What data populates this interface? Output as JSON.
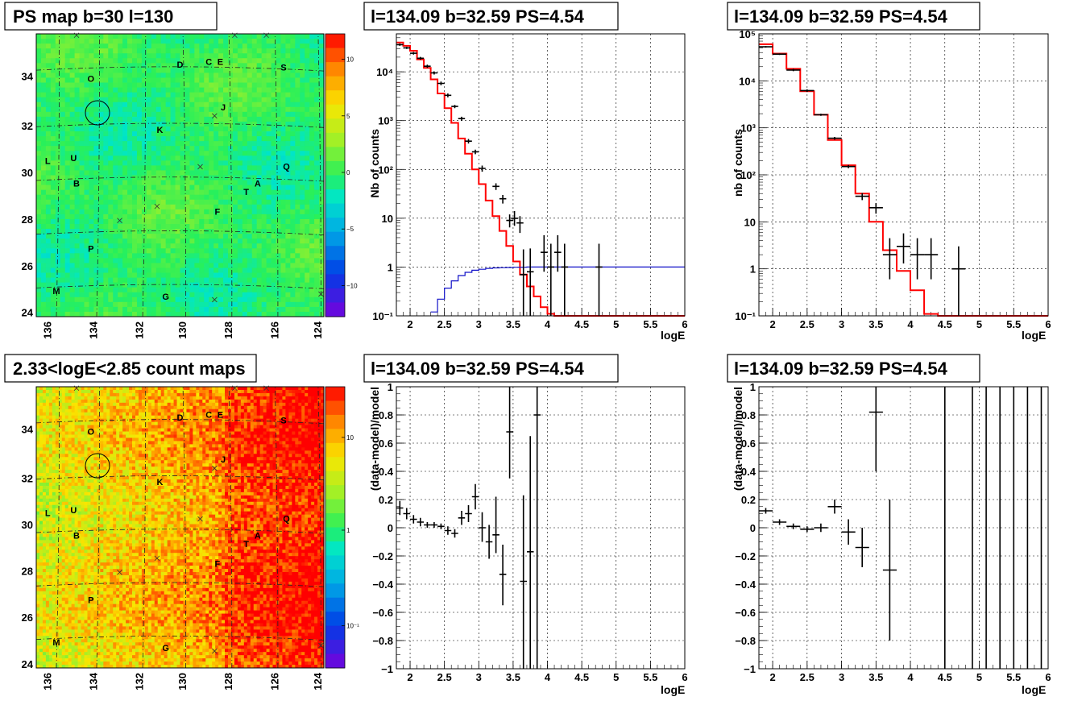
{
  "colors": {
    "frame": "#000000",
    "grid": "#9a9a9a",
    "model": "#ff0000",
    "blue": "#1010c8",
    "data": "#000000"
  },
  "maps": [
    {
      "id": "psmap",
      "title": "PS map b=30 l=130",
      "ticks_x": [
        "136",
        "134",
        "132",
        "130",
        "128",
        "126",
        "124"
      ],
      "ticks_y": [
        "24",
        "26",
        "28",
        "30",
        "32",
        "34"
      ],
      "palette_ticks": [
        "10",
        "5",
        "0",
        "−5",
        "−10"
      ],
      "palette_kind": "linear",
      "colormap": "green-dominant",
      "sources": [
        "O",
        "D",
        "C",
        "E",
        "S",
        "J",
        "K",
        "L",
        "U",
        "Q",
        "B",
        "A",
        "T",
        "F",
        "P",
        "M",
        "G"
      ]
    },
    {
      "id": "countmap",
      "title": "2.33<logE<2.85 count maps",
      "ticks_x": [
        "136",
        "134",
        "132",
        "130",
        "128",
        "126",
        "124"
      ],
      "ticks_y": [
        "24",
        "26",
        "28",
        "30",
        "32",
        "34"
      ],
      "palette_ticks": [
        "10",
        "1",
        "10⁻¹"
      ],
      "palette_kind": "log",
      "colormap": "orange-dominant",
      "sources": [
        "O",
        "D",
        "C",
        "E",
        "S",
        "J",
        "K",
        "L",
        "U",
        "Q",
        "B",
        "A",
        "T",
        "F",
        "P",
        "M",
        "G"
      ]
    }
  ],
  "chart_data": [
    {
      "id": "spec1",
      "type": "line",
      "title": "l=134.09 b=32.59 PS=4.54",
      "xlabel": "logE",
      "ylabel": "Nb of counts",
      "xlim": [
        1.8,
        6
      ],
      "ylim": [
        0.1,
        60000
      ],
      "yscale": "log",
      "xticks": [
        "2",
        "2.5",
        "3",
        "3.5",
        "4",
        "4.5",
        "5",
        "5.5",
        "6"
      ],
      "yticks": [
        "10⁻¹",
        "1",
        "10",
        "10²",
        "10³",
        "10⁴"
      ],
      "grid": true,
      "series": [
        {
          "kind": "step",
          "color": "red",
          "x": [
            1.8,
            1.9,
            2.0,
            2.1,
            2.2,
            2.3,
            2.4,
            2.5,
            2.6,
            2.7,
            2.8,
            2.9,
            3.0,
            3.1,
            3.2,
            3.3,
            3.4,
            3.5,
            3.6,
            3.7,
            3.8,
            3.9,
            4.0,
            4.1,
            4.2,
            4.3,
            4.4,
            4.5,
            6.0
          ],
          "values": [
            40000,
            34000,
            27000,
            18000,
            12000,
            7000,
            3600,
            1800,
            900,
            430,
            210,
            100,
            50,
            23,
            11,
            5.5,
            2.7,
            1.3,
            0.7,
            0.4,
            0.25,
            0.15,
            0.11,
            0.1,
            0.1,
            0.1,
            0.1,
            0.1,
            0.1
          ]
        },
        {
          "kind": "step",
          "color": "blue",
          "x": [
            2.3,
            2.4,
            2.5,
            2.6,
            2.7,
            2.8,
            2.9,
            3.0,
            3.1,
            3.2,
            3.3,
            3.4,
            3.5,
            3.6,
            3.7,
            3.8,
            3.9,
            4.0,
            4.1,
            4.2,
            6.0
          ],
          "values": [
            0.12,
            0.22,
            0.37,
            0.52,
            0.67,
            0.78,
            0.86,
            0.9,
            0.94,
            0.96,
            0.97,
            0.98,
            0.99,
            0.99,
            1.0,
            1.0,
            1.0,
            1.0,
            1.0,
            1.0,
            1.0
          ]
        },
        {
          "kind": "points",
          "color": "black",
          "points": [
            [
              1.85,
              36000,
              1.8,
              1.9,
              34000,
              38000
            ],
            [
              1.95,
              31000,
              1.9,
              2.0,
              29500,
              32500
            ],
            [
              2.05,
              24000,
              2.0,
              2.1,
              22500,
              25500
            ],
            [
              2.15,
              19000,
              2.1,
              2.2,
              17800,
              20200
            ],
            [
              2.25,
              13000,
              2.2,
              2.3,
              12000,
              14000
            ],
            [
              2.35,
              9500,
              2.3,
              2.4,
              8800,
              10200
            ],
            [
              2.45,
              5800,
              2.4,
              2.5,
              5300,
              6300
            ],
            [
              2.55,
              3300,
              2.5,
              2.6,
              3000,
              3600
            ],
            [
              2.65,
              1950,
              2.6,
              2.7,
              1800,
              2100
            ],
            [
              2.75,
              1100,
              2.7,
              2.8,
              1000,
              1200
            ],
            [
              2.85,
              380,
              2.8,
              2.9,
              340,
              420
            ],
            [
              2.95,
              230,
              2.9,
              3.0,
              205,
              255
            ],
            [
              3.05,
              105,
              3.0,
              3.1,
              90,
              120
            ],
            [
              3.25,
              45,
              3.2,
              3.3,
              38,
              52
            ],
            [
              3.35,
              25,
              3.3,
              3.4,
              20,
              30
            ],
            [
              3.45,
              9,
              3.4,
              3.5,
              6.5,
              12
            ],
            [
              3.52,
              10,
              3.47,
              3.57,
              7,
              14
            ],
            [
              3.6,
              8,
              3.55,
              3.65,
              5,
              11
            ],
            [
              3.65,
              0.7,
              3.6,
              3.7,
              0.1,
              2.3
            ],
            [
              3.75,
              0.8,
              3.7,
              3.8,
              0.1,
              2.4
            ],
            [
              3.95,
              2,
              3.9,
              4.0,
              0.8,
              4.5
            ],
            [
              4.05,
              1,
              4.0,
              4.1,
              0.1,
              3.0
            ],
            [
              4.15,
              2,
              4.1,
              4.2,
              0.8,
              4.5
            ],
            [
              4.25,
              1,
              4.2,
              4.3,
              0.1,
              3.0
            ],
            [
              4.75,
              1,
              4.7,
              4.8,
              0.1,
              3.0
            ]
          ]
        }
      ]
    },
    {
      "id": "spec2",
      "type": "line",
      "title": "l=134.09 b=32.59 PS=4.54",
      "xlabel": "logE",
      "ylabel": "nb of counts",
      "xlim": [
        1.8,
        6
      ],
      "ylim": [
        0.1,
        100000
      ],
      "yscale": "log",
      "xticks": [
        "2",
        "2.5",
        "3",
        "3.5",
        "4",
        "4.5",
        "5",
        "5.5",
        "6"
      ],
      "yticks": [
        "10⁻¹",
        "1",
        "10",
        "10²",
        "10³",
        "10⁴",
        "10⁵"
      ],
      "grid": true,
      "series": [
        {
          "kind": "step",
          "color": "red",
          "x": [
            1.8,
            2.0,
            2.2,
            2.4,
            2.6,
            2.8,
            3.0,
            3.2,
            3.4,
            3.6,
            3.8,
            4.0,
            4.2,
            4.4,
            6.0
          ],
          "values": [
            60000,
            38000,
            18000,
            6000,
            1900,
            550,
            160,
            40,
            10,
            2.5,
            0.9,
            0.35,
            0.11,
            0.1,
            0.1
          ]
        },
        {
          "kind": "points",
          "color": "black",
          "points": [
            [
              1.9,
              53000,
              1.8,
              2.0,
              51000,
              55000
            ],
            [
              2.1,
              37000,
              2.0,
              2.2,
              35500,
              38500
            ],
            [
              2.3,
              17000,
              2.2,
              2.4,
              16000,
              18000
            ],
            [
              2.5,
              6200,
              2.4,
              2.6,
              5800,
              6600
            ],
            [
              2.7,
              1900,
              2.6,
              2.8,
              1800,
              2000
            ],
            [
              2.9,
              600,
              2.8,
              3.0,
              560,
              640
            ],
            [
              3.1,
              150,
              3.0,
              3.2,
              138,
              162
            ],
            [
              3.3,
              35,
              3.2,
              3.4,
              29,
              41
            ],
            [
              3.5,
              20,
              3.4,
              3.6,
              15,
              25
            ],
            [
              3.7,
              2,
              3.6,
              3.8,
              0.6,
              4.5
            ],
            [
              3.9,
              3,
              3.8,
              4.0,
              1.3,
              5.7
            ],
            [
              4.1,
              2,
              4.0,
              4.2,
              0.6,
              4.5
            ],
            [
              4.3,
              2,
              4.2,
              4.4,
              0.6,
              4.5
            ],
            [
              4.7,
              1,
              4.6,
              4.8,
              0.1,
              3.0
            ]
          ]
        }
      ]
    },
    {
      "id": "res1",
      "type": "scatter",
      "title": "l=134.09 b=32.59 PS=4.54",
      "xlabel": "logE",
      "ylabel": "(data-model)/model",
      "xlim": [
        1.8,
        6
      ],
      "ylim": [
        -1,
        1
      ],
      "yscale": "linear",
      "xticks": [
        "2",
        "2.5",
        "3",
        "3.5",
        "4",
        "4.5",
        "5",
        "5.5",
        "6"
      ],
      "yticks": [
        "−1",
        "−0.8",
        "−0.6",
        "−0.4",
        "−0.2",
        "0",
        "0.2",
        "0.4",
        "0.6",
        "0.8",
        "1"
      ],
      "grid": true,
      "series": [
        {
          "kind": "points",
          "color": "black",
          "points": [
            [
              1.85,
              0.14,
              1.8,
              1.9,
              0.09,
              0.19
            ],
            [
              1.95,
              0.1,
              1.9,
              2.0,
              0.06,
              0.14
            ],
            [
              2.05,
              0.06,
              2.0,
              2.1,
              0.03,
              0.09
            ],
            [
              2.15,
              0.04,
              2.1,
              2.2,
              0.01,
              0.07
            ],
            [
              2.25,
              0.02,
              2.2,
              2.3,
              0.0,
              0.04
            ],
            [
              2.35,
              0.02,
              2.3,
              2.4,
              0.0,
              0.04
            ],
            [
              2.45,
              0.01,
              2.4,
              2.5,
              -0.01,
              0.03
            ],
            [
              2.55,
              -0.02,
              2.5,
              2.6,
              -0.05,
              0.01
            ],
            [
              2.65,
              -0.04,
              2.6,
              2.7,
              -0.07,
              -0.01
            ],
            [
              2.75,
              0.07,
              2.7,
              2.8,
              0.02,
              0.12
            ],
            [
              2.85,
              0.1,
              2.8,
              2.9,
              0.04,
              0.16
            ],
            [
              2.95,
              0.22,
              2.9,
              3.0,
              0.13,
              0.31
            ],
            [
              3.05,
              0.0,
              3.0,
              3.1,
              -0.1,
              0.11
            ],
            [
              3.15,
              -0.1,
              3.1,
              3.2,
              -0.22,
              0.02
            ],
            [
              3.25,
              -0.05,
              3.2,
              3.3,
              -0.18,
              0.22
            ],
            [
              3.35,
              -0.33,
              3.3,
              3.4,
              -0.55,
              -0.12
            ],
            [
              3.45,
              0.68,
              3.4,
              3.5,
              0.35,
              1.0
            ],
            [
              3.65,
              -0.38,
              3.6,
              3.7,
              -1.0,
              0.23
            ],
            [
              3.75,
              -0.17,
              3.7,
              3.8,
              -1.0,
              0.65
            ],
            [
              3.85,
              0.8,
              3.8,
              3.9,
              -1.0,
              1.0
            ]
          ]
        }
      ]
    },
    {
      "id": "res2",
      "type": "scatter",
      "title": "l=134.09 b=32.59 PS=4.54",
      "xlabel": "logE",
      "ylabel": "(data-model)/model",
      "xlim": [
        1.8,
        6
      ],
      "ylim": [
        -1,
        1
      ],
      "yscale": "linear",
      "xticks": [
        "2",
        "2.5",
        "3",
        "3.5",
        "4",
        "4.5",
        "5",
        "5.5",
        "6"
      ],
      "yticks": [
        "−1",
        "−0.8",
        "−0.6",
        "−0.4",
        "−0.2",
        "0",
        "0.2",
        "0.4",
        "0.6",
        "0.8",
        "1"
      ],
      "grid": true,
      "series": [
        {
          "kind": "points",
          "color": "black",
          "points": [
            [
              1.9,
              0.12,
              1.8,
              2.0,
              0.1,
              0.14
            ],
            [
              2.1,
              0.04,
              2.0,
              2.2,
              0.02,
              0.06
            ],
            [
              2.3,
              0.01,
              2.2,
              2.4,
              -0.01,
              0.03
            ],
            [
              2.5,
              -0.01,
              2.4,
              2.6,
              -0.03,
              0.01
            ],
            [
              2.7,
              0.0,
              2.6,
              2.8,
              -0.03,
              0.03
            ],
            [
              2.9,
              0.15,
              2.8,
              3.0,
              0.1,
              0.2
            ],
            [
              3.1,
              -0.03,
              3.0,
              3.2,
              -0.12,
              0.06
            ],
            [
              3.3,
              -0.14,
              3.2,
              3.4,
              -0.28,
              0.0
            ],
            [
              3.5,
              0.82,
              3.4,
              3.6,
              0.4,
              1.0
            ],
            [
              3.7,
              -0.3,
              3.6,
              3.8,
              -0.8,
              0.2
            ],
            [
              4.5,
              1.0,
              4.5,
              4.5,
              -1.0,
              1.0
            ],
            [
              4.9,
              1.0,
              4.9,
              4.9,
              -1.0,
              1.0
            ],
            [
              5.1,
              1.0,
              5.1,
              5.1,
              -1.0,
              1.0
            ],
            [
              5.3,
              1.0,
              5.3,
              5.3,
              -1.0,
              1.0
            ],
            [
              5.5,
              1.0,
              5.5,
              5.5,
              -1.0,
              1.0
            ],
            [
              5.7,
              1.0,
              5.7,
              5.7,
              -1.0,
              1.0
            ],
            [
              5.9,
              1.0,
              5.9,
              5.9,
              -1.0,
              1.0
            ]
          ]
        }
      ]
    }
  ]
}
